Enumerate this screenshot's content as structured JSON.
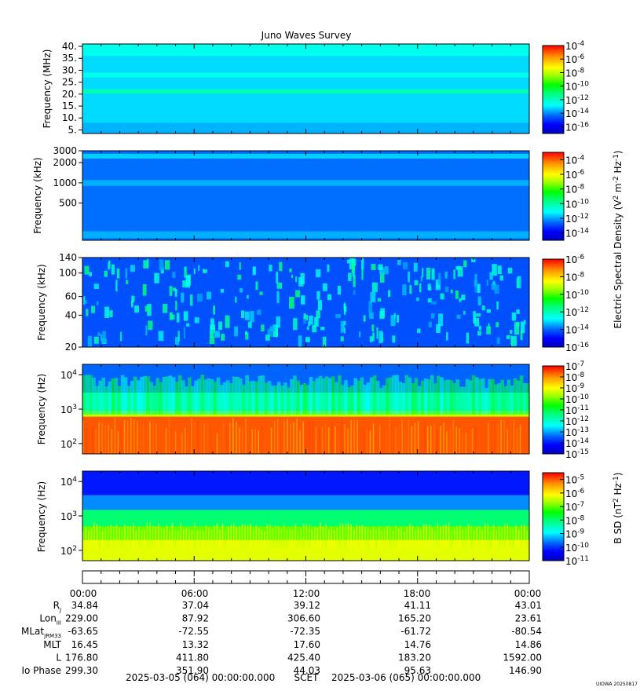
{
  "title": "Juno Waves Survey",
  "footer_label": "UIOWA 20250817",
  "chart_data": [
    {
      "type": "heatmap",
      "ylabel": "Frequency (MHz)",
      "yscale": "linear",
      "ylim": [
        3.5,
        41
      ],
      "yticks": [
        "40.",
        "35.",
        "30.",
        "25.",
        "20.",
        "15.",
        "10.",
        "5."
      ],
      "colorbar": {
        "scale": "log",
        "range": [
          -17,
          -4
        ],
        "ticks": [
          {
            "base": "10",
            "exp": "-4"
          },
          {
            "base": "10",
            "exp": "-6"
          },
          {
            "base": "10",
            "exp": "-8"
          },
          {
            "base": "10",
            "exp": "-10"
          },
          {
            "base": "10",
            "exp": "-12"
          },
          {
            "base": "10",
            "exp": "-14"
          },
          {
            "base": "10",
            "exp": "-16"
          }
        ]
      },
      "bands": [
        {
          "from": 3.5,
          "to": 41,
          "level": -13.2
        },
        {
          "from": 20.3,
          "to": 22,
          "level": -11.8
        },
        {
          "from": 27,
          "to": 29,
          "level": -12.6
        },
        {
          "from": 36,
          "to": 41,
          "level": -12.6
        },
        {
          "from": 3.5,
          "to": 8,
          "level": -13.6
        }
      ]
    },
    {
      "type": "heatmap",
      "ylabel": "Frequency (kHz)",
      "yscale": "log",
      "ylim": [
        140,
        3000
      ],
      "yticks": [
        "3000",
        "2000",
        "1000",
        "500"
      ],
      "colorbar": {
        "scale": "log",
        "range": [
          -15,
          -3
        ],
        "ticks": [
          {
            "base": "10",
            "exp": "-4"
          },
          {
            "base": "10",
            "exp": "-6"
          },
          {
            "base": "10",
            "exp": "-8"
          },
          {
            "base": "10",
            "exp": "-10"
          },
          {
            "base": "10",
            "exp": "-12"
          },
          {
            "base": "10",
            "exp": "-14"
          }
        ]
      },
      "bands": [
        {
          "from": 140,
          "to": 3000,
          "level": -12.5
        },
        {
          "from": 2300,
          "to": 2700,
          "level": -11.6
        },
        {
          "from": 900,
          "to": 1100,
          "level": -11.9
        },
        {
          "from": 150,
          "to": 190,
          "level": -11.9
        }
      ]
    },
    {
      "type": "heatmap",
      "ylabel": "Frequency (kHz)",
      "yscale": "log",
      "ylim": [
        20,
        140
      ],
      "yticks": [
        "140",
        "100",
        "60",
        "40",
        "20"
      ],
      "colorbar": {
        "scale": "log",
        "range": [
          -16,
          -6
        ],
        "ticks": [
          {
            "base": "10",
            "exp": "-6"
          },
          {
            "base": "10",
            "exp": "-8"
          },
          {
            "base": "10",
            "exp": "-10"
          },
          {
            "base": "10",
            "exp": "-12"
          },
          {
            "base": "10",
            "exp": "-14"
          },
          {
            "base": "10",
            "exp": "-16"
          }
        ]
      },
      "background_level": -14.2
    },
    {
      "type": "heatmap",
      "ylabel": "Frequency (Hz)",
      "yscale": "log",
      "ylim": [
        50,
        20000
      ],
      "yticks": [
        {
          "base": "10",
          "exp": "4"
        },
        {
          "base": "10",
          "exp": "3"
        },
        {
          "base": "10",
          "exp": "2"
        }
      ],
      "colorbar": {
        "scale": "log",
        "range": [
          -15,
          -7
        ],
        "ticks": [
          {
            "base": "10",
            "exp": "-7"
          },
          {
            "base": "10",
            "exp": "-8"
          },
          {
            "base": "10",
            "exp": "-9"
          },
          {
            "base": "10",
            "exp": "-10"
          },
          {
            "base": "10",
            "exp": "-11"
          },
          {
            "base": "10",
            "exp": "-12"
          },
          {
            "base": "10",
            "exp": "-13"
          },
          {
            "base": "10",
            "exp": "-14"
          },
          {
            "base": "10",
            "exp": "-15"
          }
        ]
      },
      "bands": [
        {
          "from": 50,
          "to": 600,
          "level": -7.6
        },
        {
          "from": 600,
          "to": 900,
          "level": -9.5
        },
        {
          "from": 900,
          "to": 3000,
          "level": -12.2
        },
        {
          "from": 3000,
          "to": 20000,
          "level": -13.4
        }
      ]
    },
    {
      "type": "heatmap",
      "ylabel": "Frequency (Hz)",
      "yscale": "log",
      "ylim": [
        50,
        20000
      ],
      "yticks": [
        {
          "base": "10",
          "exp": "4"
        },
        {
          "base": "10",
          "exp": "3"
        },
        {
          "base": "10",
          "exp": "2"
        }
      ],
      "colorbar": {
        "scale": "log",
        "range": [
          -11,
          -4.5
        ],
        "ticks": [
          {
            "base": "10",
            "exp": "-5"
          },
          {
            "base": "10",
            "exp": "-6"
          },
          {
            "base": "10",
            "exp": "-7"
          },
          {
            "base": "10",
            "exp": "-8"
          },
          {
            "base": "10",
            "exp": "-9"
          },
          {
            "base": "10",
            "exp": "-10"
          },
          {
            "base": "10",
            "exp": "-11"
          }
        ]
      },
      "bands": [
        {
          "from": 50,
          "to": 200,
          "level": -6.3
        },
        {
          "from": 200,
          "to": 500,
          "level": -7.0
        },
        {
          "from": 500,
          "to": 1500,
          "level": -8.0
        },
        {
          "from": 1500,
          "to": 4000,
          "level": -9.5
        },
        {
          "from": 4000,
          "to": 20000,
          "level": -10.2
        }
      ]
    }
  ],
  "colorbar_labels": {
    "electric": {
      "pre": "Electric Spectral Density (V",
      "sup1": "2",
      "mid1": " m",
      "sup2": "-2",
      "mid2": " Hz",
      "sup3": "-1",
      "post": ")"
    },
    "magnetic": {
      "pre": "B SD (nT",
      "sup1": "2",
      "mid1": " Hz",
      "sup2": "-1",
      "post": ")"
    }
  },
  "time_axis": {
    "ticks": [
      "00:00",
      "06:00",
      "12:00",
      "18:00",
      "00:00"
    ],
    "rows": [
      {
        "label": "R",
        "sub": "J",
        "values": [
          "34.84",
          "37.04",
          "39.12",
          "41.11",
          "43.01"
        ]
      },
      {
        "label": "Lon",
        "sub": "III",
        "values": [
          "229.00",
          "87.92",
          "306.60",
          "165.20",
          "23.61"
        ]
      },
      {
        "label": "MLat",
        "sub": "JRM33",
        "values": [
          "-63.65",
          "-72.55",
          "-72.35",
          "-61.72",
          "-80.54"
        ]
      },
      {
        "label": "MLT",
        "sub": "",
        "values": [
          "16.45",
          "13.32",
          "17.60",
          "14.76",
          "14.86"
        ]
      },
      {
        "label": "L",
        "sub": "",
        "values": [
          "176.80",
          "411.80",
          "425.40",
          "183.20",
          "1592.00"
        ]
      },
      {
        "label": "Io Phase",
        "sub": "",
        "values": [
          "299.30",
          "351.90",
          "44.03",
          "95.63",
          "146.90"
        ]
      }
    ],
    "start": "2025-03-05 (064) 00:00:00.000",
    "label": "SCET",
    "end": "2025-03-06 (065) 00:00:00.000"
  }
}
